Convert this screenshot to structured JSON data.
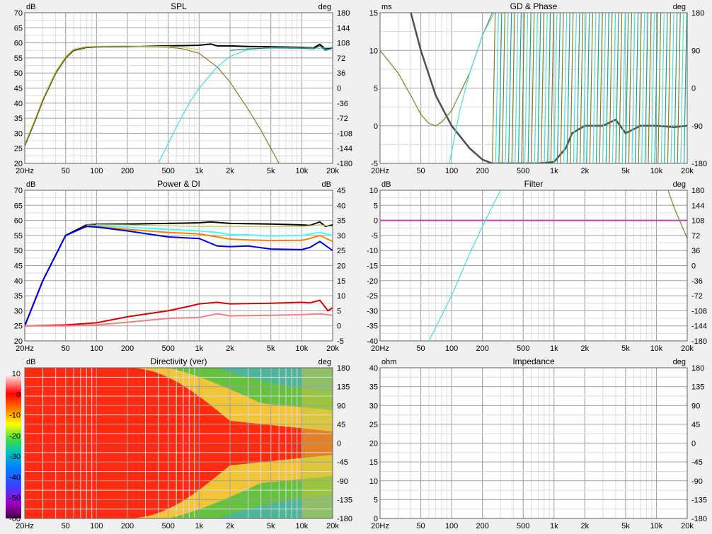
{
  "colors": {
    "background": "#f0f0f0",
    "plot_bg": "#ffffff",
    "grid_major": "#a0a0a0",
    "grid_minor": "#dcdcdc"
  },
  "x_ticks": [
    "20Hz",
    "50",
    "100",
    "200",
    "500",
    "1k",
    "2k",
    "5k",
    "10k",
    "20k"
  ],
  "chart_data": [
    {
      "id": "spl",
      "type": "line",
      "title": "SPL",
      "left_unit": "dB",
      "right_unit": "deg",
      "xlim": [
        20,
        20000
      ],
      "xscale": "log",
      "ylim": [
        20,
        70
      ],
      "left_ticks": [
        "70",
        "65",
        "60",
        "55",
        "50",
        "45",
        "40",
        "35",
        "30",
        "25",
        "20"
      ],
      "right_ticks": [
        "180",
        "144",
        "108",
        "72",
        "36",
        "0",
        "-36",
        "-72",
        "-108",
        "-144",
        "-180"
      ],
      "series": [
        {
          "color": "#000000",
          "width": 2,
          "x": [
            20,
            25,
            30,
            40,
            50,
            60,
            80,
            100,
            200,
            500,
            1000,
            1300,
            1500,
            2000,
            3000,
            5000,
            10000,
            13000,
            15000,
            17000,
            20000
          ],
          "y": [
            26,
            34,
            41,
            50,
            55,
            57.5,
            58.5,
            58.7,
            58.8,
            59,
            59.2,
            59.6,
            59,
            59,
            58.8,
            58.7,
            58.5,
            58.3,
            59.5,
            58,
            58.5
          ]
        },
        {
          "color": "#d8d870",
          "width": 1.2,
          "x": [
            20,
            25,
            30,
            40,
            50,
            60,
            80,
            100,
            200,
            500,
            700,
            1000
          ],
          "y": [
            26.5,
            34.5,
            41.5,
            50.5,
            55.5,
            58,
            58.8,
            58.9,
            59,
            58.8,
            58.5,
            57.8
          ]
        },
        {
          "color": "#808020",
          "width": 1.2,
          "x": [
            20,
            25,
            30,
            40,
            50,
            60,
            80,
            100,
            200,
            500,
            700,
            1000,
            1500,
            2000,
            3000,
            4000,
            5000,
            6000
          ],
          "y": [
            26,
            34,
            41,
            50,
            55,
            57.5,
            58.5,
            58.7,
            58.8,
            58.6,
            58,
            56.5,
            52,
            47,
            38,
            31,
            25,
            20
          ]
        },
        {
          "color": "#40e0e0",
          "width": 1.2,
          "x": [
            400,
            600,
            800,
            1000,
            1500,
            2000,
            3000,
            5000,
            10000,
            15000,
            20000
          ],
          "y": [
            20,
            32,
            40,
            45,
            52,
            55.5,
            57.8,
            58.5,
            58.3,
            58.2,
            58.5
          ]
        },
        {
          "color": "#208080",
          "width": 1.2,
          "x": [
            2000,
            3000,
            5000,
            10000,
            13000,
            15000,
            17000,
            20000
          ],
          "y": [
            57.5,
            58,
            58.3,
            58.2,
            58,
            59,
            57.5,
            58.2
          ]
        }
      ]
    },
    {
      "id": "gd",
      "type": "line",
      "title": "GD & Phase",
      "left_unit": "ms",
      "right_unit": "deg",
      "xlim": [
        20,
        20000
      ],
      "xscale": "log",
      "ylim": [
        -5,
        15
      ],
      "left_ticks": [
        "15",
        "10",
        "5",
        "0",
        "-5"
      ],
      "right_ticks": [
        "180",
        "90",
        "0",
        "-90",
        "-180"
      ],
      "series": [
        {
          "color": "#505050",
          "width": 2.5,
          "x": [
            40,
            50,
            70,
            100,
            150,
            200,
            250,
            700,
            1000,
            1300,
            1500,
            2000,
            3000,
            4000,
            5000,
            7000,
            10000,
            15000,
            20000
          ],
          "y": [
            15,
            10,
            4,
            0,
            -3,
            -4.5,
            -5,
            -5,
            -4.8,
            -3,
            -1,
            0,
            0,
            0.8,
            -1,
            0,
            0,
            -0.2,
            0
          ]
        },
        {
          "color": "#808020",
          "width": 1.2,
          "x": [
            20,
            30,
            40,
            50,
            60,
            70,
            80,
            100,
            150,
            200,
            250
          ],
          "y": [
            10,
            7,
            4,
            1.5,
            0.3,
            0,
            0.5,
            2,
            7,
            12,
            15
          ]
        },
        {
          "color": "#40e0e0",
          "width": 1.2,
          "x": [
            95,
            120,
            150,
            200,
            260
          ],
          "y": [
            -5,
            2,
            7,
            12,
            15
          ]
        }
      ]
    },
    {
      "id": "power",
      "type": "line",
      "title": "Power & DI",
      "left_unit": "dB",
      "right_unit": "dB",
      "xlim": [
        20,
        20000
      ],
      "xscale": "log",
      "ylim": [
        20,
        70
      ],
      "left_ticks": [
        "70",
        "65",
        "60",
        "55",
        "50",
        "45",
        "40",
        "35",
        "30",
        "25",
        "20"
      ],
      "right_ticks": [
        "45",
        "40",
        "35",
        "30",
        "25",
        "20",
        "15",
        "10",
        "5",
        "0",
        "-5"
      ],
      "series": [
        {
          "color": "#000000",
          "width": 2,
          "x": [
            20,
            30,
            50,
            80,
            100,
            200,
            500,
            1000,
            1300,
            2000,
            5000,
            10000,
            12000,
            15000,
            17000,
            20000
          ],
          "y": [
            25,
            40,
            55,
            58.5,
            58.7,
            58.8,
            59,
            59.2,
            59.5,
            59,
            58.8,
            58.5,
            58.3,
            59.5,
            58,
            58.5
          ]
        },
        {
          "color": "#c0c040",
          "width": 1.2,
          "x": [
            100,
            200,
            500,
            1000,
            2000,
            5000,
            10000,
            15000,
            20000
          ],
          "y": [
            58.6,
            58.5,
            58.2,
            58,
            58,
            58,
            58,
            58.5,
            58
          ]
        },
        {
          "color": "#40ffff",
          "width": 2,
          "x": [
            80,
            100,
            200,
            500,
            1000,
            1500,
            2000,
            3000,
            5000,
            10000,
            12000,
            15000,
            20000
          ],
          "y": [
            58.4,
            58.3,
            57.7,
            57,
            56.5,
            56,
            55.3,
            55.2,
            54.8,
            55,
            55.5,
            56,
            55
          ]
        },
        {
          "color": "#ff8000",
          "width": 2,
          "x": [
            80,
            100,
            200,
            500,
            1000,
            1500,
            2000,
            3000,
            5000,
            10000,
            12000,
            15000,
            20000
          ],
          "y": [
            58.3,
            58,
            57,
            56,
            55.5,
            54.5,
            53.8,
            53.5,
            53.3,
            53.4,
            54,
            55,
            53
          ]
        },
        {
          "color": "#0000e0",
          "width": 2,
          "x": [
            20,
            30,
            50,
            80,
            100,
            200,
            500,
            1000,
            1500,
            2000,
            3000,
            5000,
            10000,
            12000,
            15000,
            20000
          ],
          "y": [
            25,
            40,
            55,
            58,
            57.8,
            56.5,
            54.5,
            54,
            51.5,
            51.3,
            51.5,
            50.5,
            50.3,
            51,
            53,
            50
          ]
        },
        {
          "color": "#e00000",
          "width": 2,
          "x": [
            20,
            50,
            100,
            200,
            500,
            800,
            1000,
            1500,
            2000,
            5000,
            10000,
            12000,
            15000,
            18000,
            20000
          ],
          "y": [
            25,
            25.3,
            26,
            28,
            30,
            31.5,
            32.3,
            32.8,
            32.3,
            32.5,
            32.8,
            32.6,
            33.5,
            30,
            31
          ]
        },
        {
          "color": "#f08080",
          "width": 2,
          "x": [
            20,
            50,
            100,
            200,
            500,
            1000,
            1500,
            2000,
            5000,
            10000,
            15000,
            20000
          ],
          "y": [
            25,
            25,
            25.3,
            26.2,
            27.5,
            27.8,
            29,
            28.3,
            28.5,
            28.7,
            29,
            28.5
          ]
        }
      ]
    },
    {
      "id": "filter",
      "type": "line",
      "title": "Filter",
      "left_unit": "dB",
      "right_unit": "deg",
      "xlim": [
        20,
        20000
      ],
      "xscale": "log",
      "ylim": [
        -40,
        10
      ],
      "left_ticks": [
        "10",
        "5",
        "0",
        "-5",
        "-10",
        "-15",
        "-20",
        "-25",
        "-30",
        "-35",
        "-40"
      ],
      "right_ticks": [
        "180",
        "144",
        "108",
        "72",
        "36",
        "0",
        "-36",
        "-72",
        "-108",
        "-144",
        "-180"
      ],
      "series": [
        {
          "color": "#c040c0",
          "width": 2,
          "x": [
            20,
            20000
          ],
          "y": [
            0,
            0
          ]
        },
        {
          "color": "#40e0e0",
          "width": 1.2,
          "x": [
            60,
            100,
            150,
            200,
            300
          ],
          "y": [
            -40,
            -25,
            -11,
            -2,
            10
          ]
        },
        {
          "color": "#808020",
          "width": 1.2,
          "x": [
            13000,
            15000,
            20000
          ],
          "y": [
            10,
            4,
            -6
          ]
        }
      ]
    },
    {
      "id": "directivity",
      "type": "heatmap",
      "title": "Directivity (ver)",
      "left_unit": "dB",
      "right_unit": "deg",
      "xlim": [
        20,
        20000
      ],
      "xscale": "log",
      "ylim": [
        -180,
        180
      ],
      "right_ticks": [
        "180",
        "135",
        "90",
        "45",
        "0",
        "-45",
        "-90",
        "-135",
        "-180"
      ],
      "colorbar_ticks": [
        "10",
        "0",
        "-10",
        "-20",
        "-30",
        "-40",
        "-50",
        "-60"
      ]
    },
    {
      "id": "impedance",
      "type": "line",
      "title": "Impedance",
      "left_unit": "ohm",
      "right_unit": "deg",
      "xlim": [
        20,
        20000
      ],
      "xscale": "log",
      "left_ticks": [
        "40",
        "35",
        "30",
        "25",
        "20",
        "15",
        "10",
        "5",
        "0"
      ],
      "right_ticks": [
        "180",
        "135",
        "90",
        "45",
        "0",
        "-45",
        "-90",
        "-135",
        "-180"
      ],
      "series": []
    }
  ]
}
